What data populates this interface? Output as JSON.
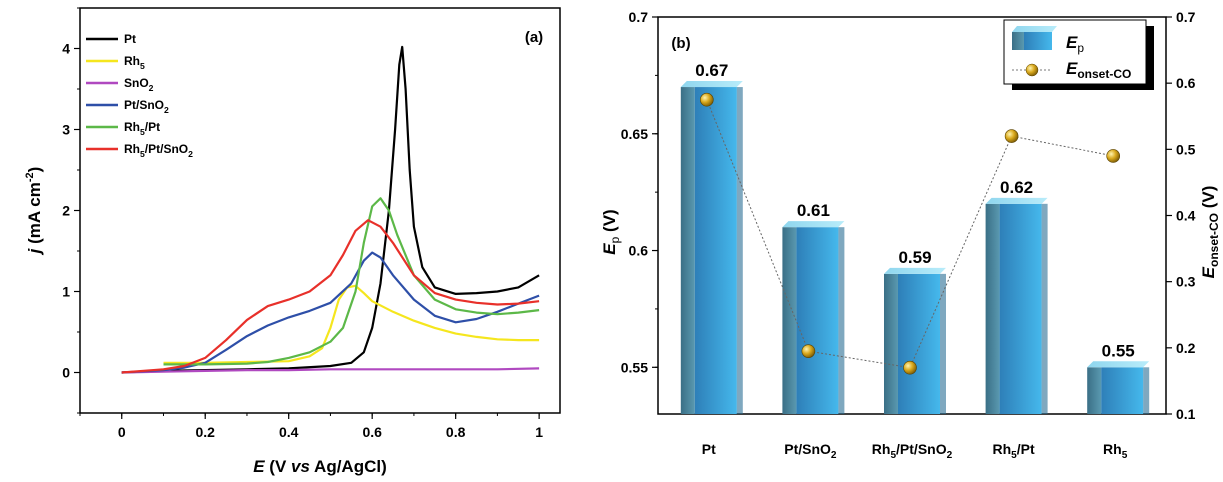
{
  "chart_data": [
    {
      "panel": "(a)",
      "type": "line",
      "xlabel": "E (V vs Ag/AgCl)",
      "ylabel": "j (mA cm-2)",
      "xlim": [
        -0.1,
        1.05
      ],
      "ylim": [
        -0.5,
        4.5
      ],
      "xticks": [
        "0",
        "0.2",
        "0.4",
        "0.6",
        "0.8",
        "1"
      ],
      "yticks": [
        "0",
        "1",
        "2",
        "3",
        "4"
      ],
      "legend_position": "top-left",
      "series": [
        {
          "name": "Pt",
          "color": "#000000",
          "x": [
            0,
            0.1,
            0.2,
            0.3,
            0.4,
            0.5,
            0.55,
            0.58,
            0.6,
            0.62,
            0.64,
            0.655,
            0.665,
            0.672,
            0.68,
            0.69,
            0.7,
            0.72,
            0.75,
            0.8,
            0.85,
            0.9,
            0.95,
            1.0
          ],
          "y": [
            0,
            0.02,
            0.03,
            0.04,
            0.05,
            0.08,
            0.12,
            0.25,
            0.55,
            1.1,
            2.0,
            3.0,
            3.8,
            4.02,
            3.5,
            2.5,
            1.8,
            1.3,
            1.05,
            0.97,
            0.98,
            1.0,
            1.05,
            1.2
          ]
        },
        {
          "name": "Rh5",
          "color": "#f5e61e",
          "x": [
            0.1,
            0.2,
            0.3,
            0.4,
            0.45,
            0.48,
            0.5,
            0.52,
            0.54,
            0.56,
            0.58,
            0.6,
            0.65,
            0.7,
            0.75,
            0.8,
            0.85,
            0.9,
            0.95,
            1.0
          ],
          "y": [
            0.12,
            0.12,
            0.13,
            0.14,
            0.2,
            0.3,
            0.55,
            0.9,
            1.05,
            1.07,
            0.98,
            0.88,
            0.75,
            0.64,
            0.55,
            0.48,
            0.44,
            0.41,
            0.4,
            0.4
          ]
        },
        {
          "name": "SnO2",
          "color": "#b049c0",
          "x": [
            0,
            0.1,
            0.2,
            0.3,
            0.4,
            0.5,
            0.6,
            0.7,
            0.8,
            0.9,
            1.0
          ],
          "y": [
            0,
            0.01,
            0.02,
            0.03,
            0.03,
            0.04,
            0.04,
            0.04,
            0.04,
            0.04,
            0.05
          ]
        },
        {
          "name": "Pt/SnO2",
          "color": "#2e4fa8",
          "x": [
            0,
            0.1,
            0.15,
            0.2,
            0.25,
            0.3,
            0.35,
            0.4,
            0.45,
            0.5,
            0.55,
            0.58,
            0.6,
            0.62,
            0.65,
            0.7,
            0.75,
            0.8,
            0.85,
            0.9,
            0.95,
            1.0
          ],
          "y": [
            0,
            0.03,
            0.06,
            0.12,
            0.28,
            0.45,
            0.58,
            0.68,
            0.76,
            0.86,
            1.1,
            1.38,
            1.48,
            1.42,
            1.2,
            0.9,
            0.7,
            0.62,
            0.66,
            0.75,
            0.85,
            0.95
          ]
        },
        {
          "name": "Rh5/Pt",
          "color": "#5cb848",
          "x": [
            0.1,
            0.2,
            0.3,
            0.35,
            0.4,
            0.45,
            0.5,
            0.53,
            0.56,
            0.58,
            0.6,
            0.62,
            0.64,
            0.66,
            0.7,
            0.75,
            0.8,
            0.85,
            0.9,
            0.95,
            1.0
          ],
          "y": [
            0.1,
            0.1,
            0.11,
            0.13,
            0.18,
            0.25,
            0.38,
            0.55,
            1.0,
            1.6,
            2.05,
            2.15,
            2.0,
            1.7,
            1.2,
            0.9,
            0.78,
            0.74,
            0.72,
            0.74,
            0.77
          ]
        },
        {
          "name": "Rh5/Pt/SnO2",
          "color": "#e8302a",
          "x": [
            0,
            0.1,
            0.15,
            0.2,
            0.25,
            0.3,
            0.35,
            0.4,
            0.45,
            0.5,
            0.53,
            0.56,
            0.59,
            0.62,
            0.65,
            0.7,
            0.75,
            0.8,
            0.85,
            0.9,
            0.95,
            1.0
          ],
          "y": [
            0,
            0.04,
            0.08,
            0.18,
            0.4,
            0.65,
            0.82,
            0.9,
            1.0,
            1.2,
            1.45,
            1.75,
            1.88,
            1.8,
            1.6,
            1.2,
            0.98,
            0.9,
            0.86,
            0.84,
            0.85,
            0.88
          ]
        }
      ]
    },
    {
      "panel": "(b)",
      "type": "bar",
      "categories": [
        "Pt",
        "Pt/SnO2",
        "Rh5/Pt/SnO2",
        "Rh5/Pt",
        "Rh5"
      ],
      "ylabel": "Ep (V)",
      "y2label": "Eonset-CO (V)",
      "ylim": [
        0.53,
        0.7
      ],
      "y2lim": [
        0.1,
        0.7
      ],
      "yticks": [
        "0.55",
        "0.6",
        "0.65",
        "0.7"
      ],
      "y2ticks": [
        "0.1",
        "0.2",
        "0.3",
        "0.4",
        "0.5",
        "0.6",
        "0.7"
      ],
      "legend_position": "top-right",
      "series": [
        {
          "name": "Ep",
          "kind": "bar",
          "color": "#3a9fd8",
          "values": [
            0.67,
            0.61,
            0.59,
            0.62,
            0.55
          ],
          "labels": [
            "0.67",
            "0.61",
            "0.59",
            "0.62",
            "0.55"
          ]
        },
        {
          "name": "Eonset-CO",
          "kind": "scatter-line",
          "axis": "right",
          "color": "#d4a017",
          "values": [
            0.575,
            0.195,
            0.17,
            0.52,
            0.49
          ]
        }
      ]
    }
  ]
}
